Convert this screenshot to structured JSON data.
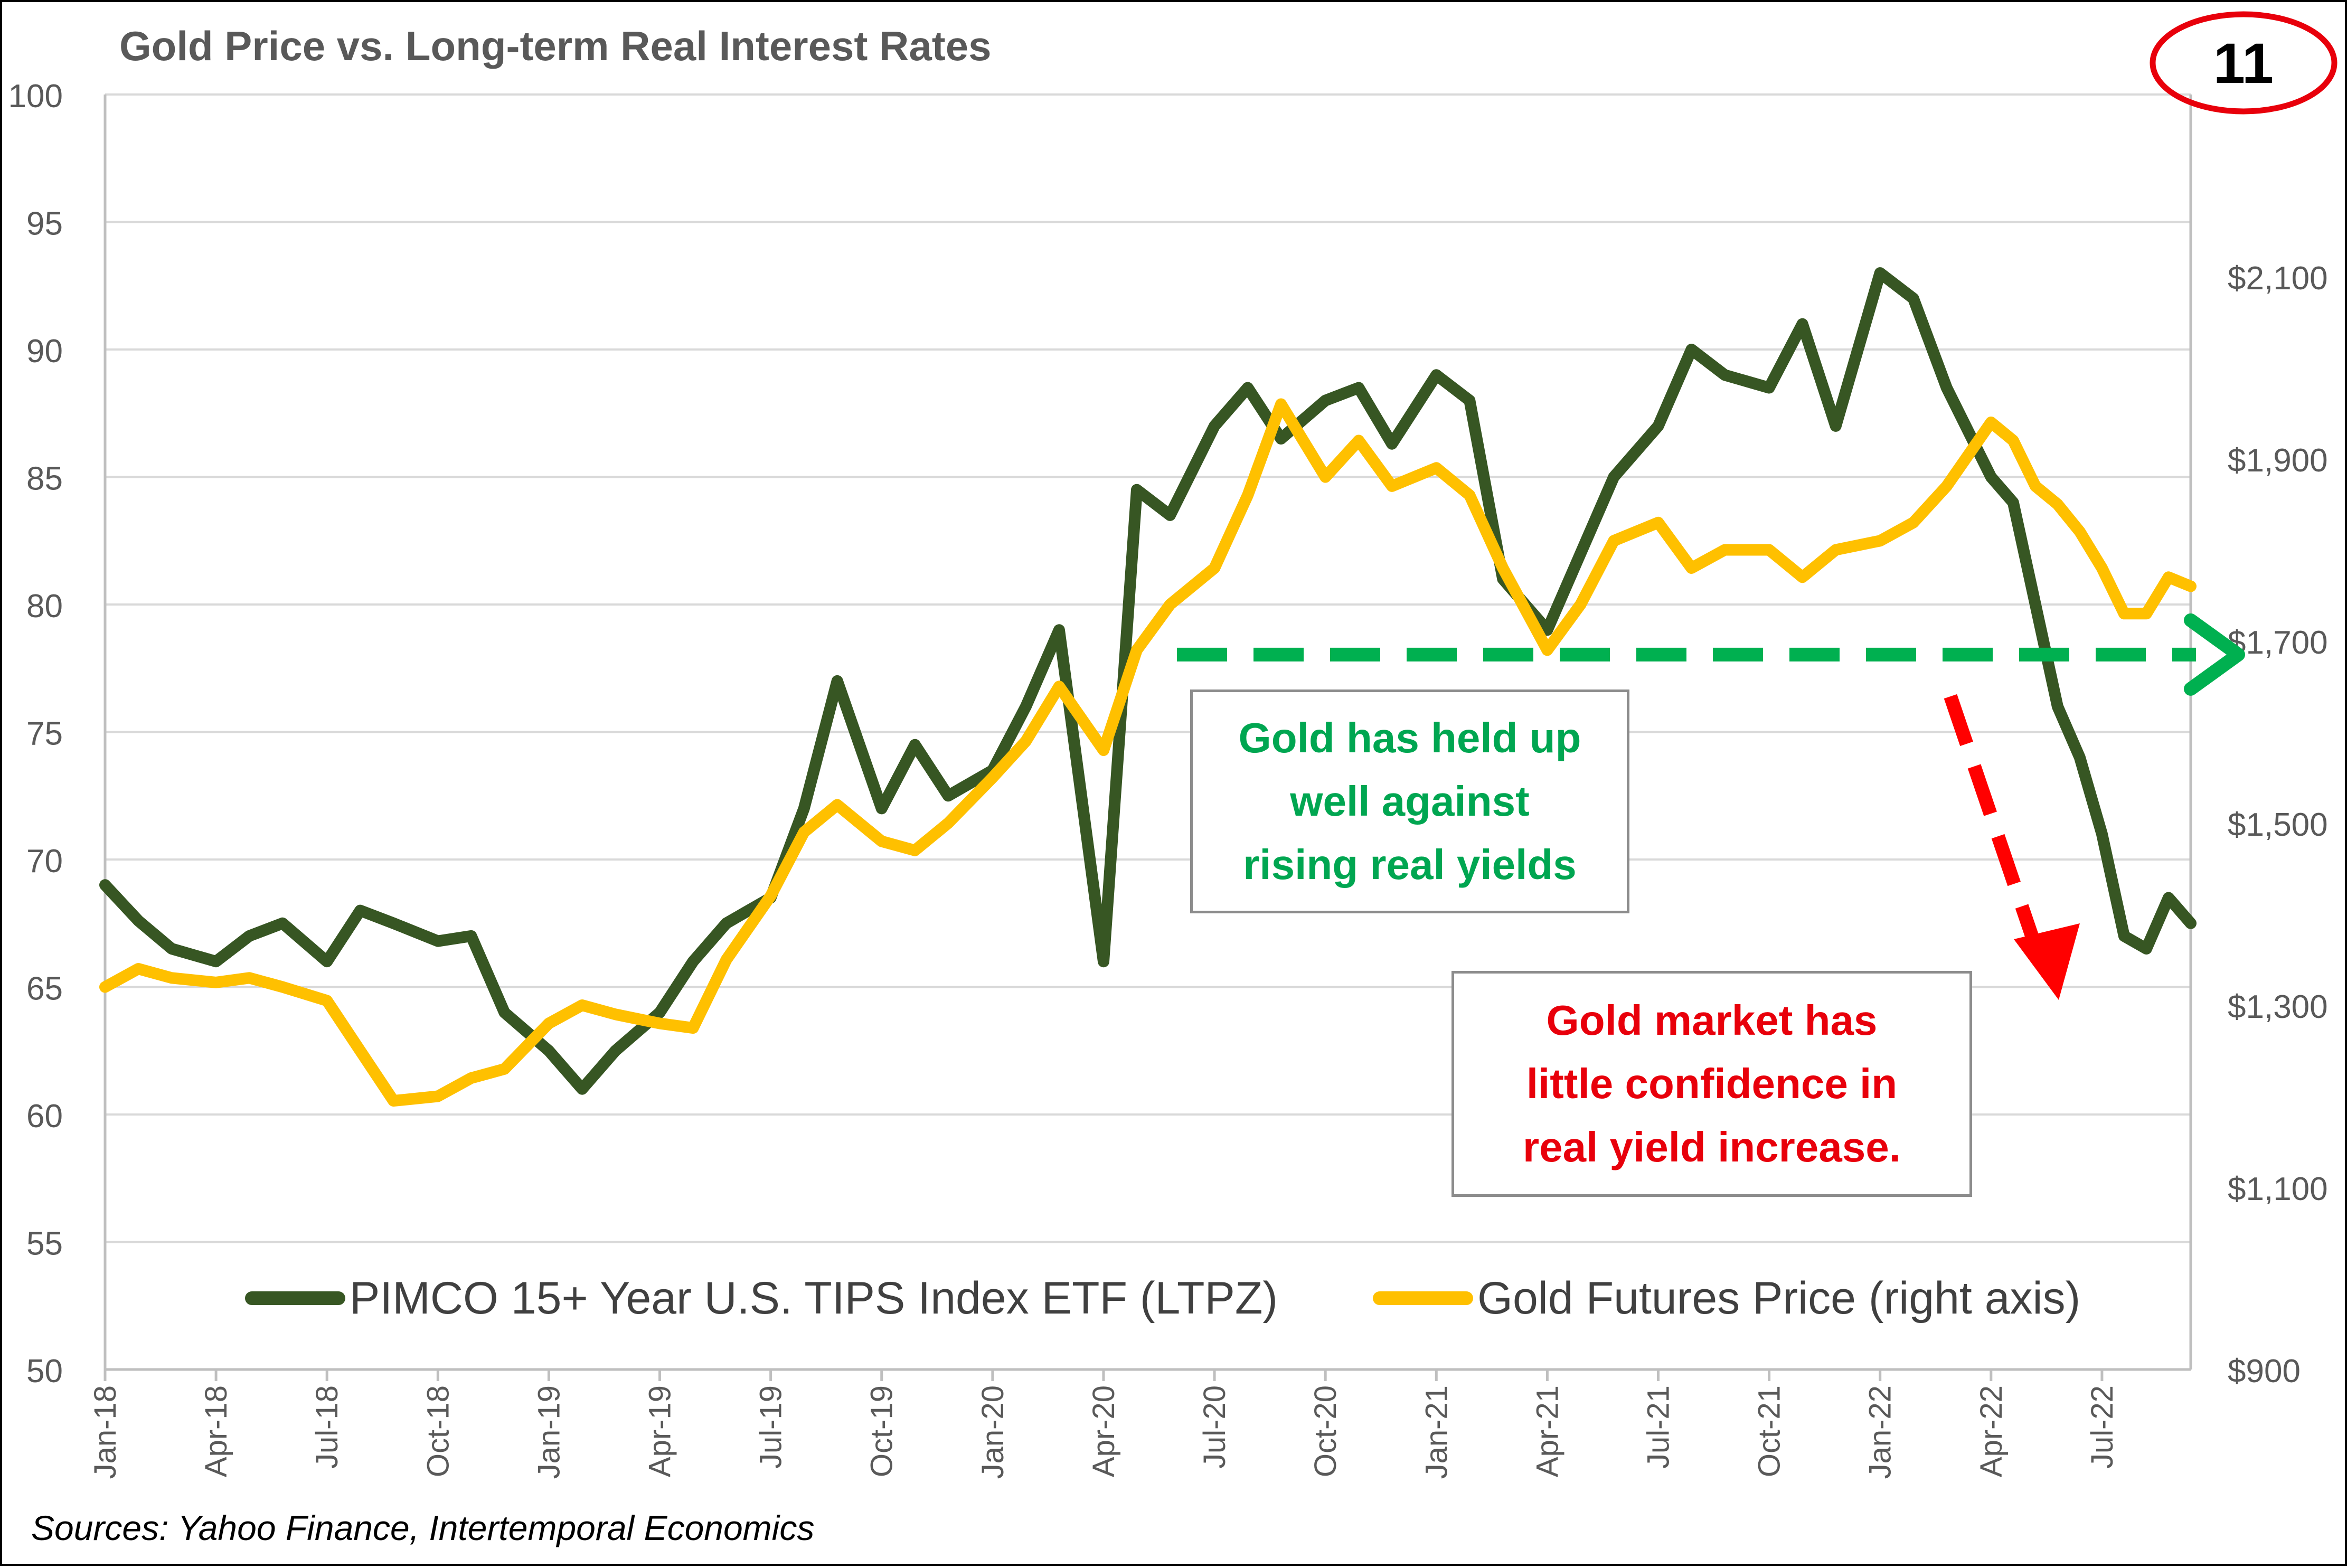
{
  "title": "Gold Price vs. Long-term Real Interest Rates",
  "slide_number": "11",
  "source": "Sources: Yahoo Finance, Intertemporal Economics",
  "annotations": {
    "green": "Gold has held up\nwell against\nrising real yields",
    "red": "Gold market has\nlittle confidence in\nreal yield increase."
  },
  "legend": {
    "ltpz": "PIMCO 15+ Year U.S. TIPS Index ETF (LTPZ)",
    "gold": "Gold Futures Price (right axis)"
  },
  "colors": {
    "ltpz": "#375623",
    "gold": "#ffc000",
    "green_arrow": "#00b050",
    "red_arrow": "#ff0000",
    "gridline": "#d9d9d9",
    "axis_text": "#595959",
    "circle": "#e8000b"
  },
  "chart_data": {
    "type": "line",
    "title": "Gold Price vs. Long-term Real Interest Rates",
    "x_tick_labels": [
      "Jan-18",
      "Apr-18",
      "Jul-18",
      "Oct-18",
      "Jan-19",
      "Apr-19",
      "Jul-19",
      "Oct-19",
      "Jan-20",
      "Apr-20",
      "Jul-20",
      "Oct-20",
      "Jan-21",
      "Apr-21",
      "Jul-21",
      "Oct-21",
      "Jan-22",
      "Apr-22",
      "Jul-22"
    ],
    "y_left": {
      "min": 50,
      "max": 100,
      "ticks": [
        50,
        55,
        60,
        65,
        70,
        75,
        80,
        85,
        90,
        95,
        100
      ],
      "tick_labels": [
        "50",
        "55",
        "60",
        "65",
        "70",
        "75",
        "80",
        "85",
        "90",
        "95",
        "100"
      ]
    },
    "y_right": {
      "min": 900,
      "max": 2300,
      "ticks": [
        900,
        1100,
        1300,
        1500,
        1700,
        1900,
        2100
      ],
      "tick_labels": [
        "$900",
        "$1,100",
        "$1,300",
        "$1,500",
        "$1,700",
        "$1,900",
        "$2,100"
      ]
    },
    "grid": true,
    "legend_position": "bottom",
    "series": [
      {
        "name": "PIMCO 15+ Year U.S. TIPS Index ETF (LTPZ)",
        "axis": "left",
        "x": [
          0,
          0.3,
          0.6,
          1,
          1.3,
          1.6,
          2,
          2.3,
          2.6,
          3,
          3.3,
          3.6,
          4,
          4.3,
          4.6,
          5,
          5.3,
          5.6,
          6,
          6.3,
          6.6,
          7,
          7.3,
          7.6,
          8,
          8.3,
          8.6,
          9,
          9.3,
          9.6,
          10,
          10.3,
          10.6,
          11,
          11.3,
          11.6,
          12,
          12.3,
          12.6,
          13,
          13.3,
          13.6,
          14,
          14.3,
          14.6,
          15,
          15.3,
          15.6,
          16,
          16.3,
          16.6,
          17,
          17.2,
          17.4,
          17.6,
          17.8,
          18,
          18.2,
          18.4,
          18.6,
          18.8
        ],
        "y": [
          69,
          67.6,
          66.5,
          66,
          67,
          67.5,
          66,
          68,
          67.5,
          66.8,
          67,
          64,
          62.5,
          61,
          62.5,
          64,
          66,
          67.5,
          68.5,
          72,
          77,
          72,
          74.5,
          72.5,
          73.5,
          76,
          79,
          66,
          84.5,
          83.5,
          87,
          88.5,
          86.5,
          88,
          88.5,
          86.3,
          89,
          88,
          81,
          79,
          82,
          85,
          87,
          90,
          89,
          88.5,
          91,
          87,
          93,
          92,
          88.5,
          85,
          84,
          80,
          76,
          74,
          71,
          67,
          66.5,
          68.5,
          67.5
        ]
      },
      {
        "name": "Gold Futures Price (right axis)",
        "axis": "right",
        "x": [
          0,
          0.3,
          0.6,
          1,
          1.3,
          1.6,
          2,
          2.3,
          2.6,
          3,
          3.3,
          3.6,
          4,
          4.3,
          4.6,
          5,
          5.3,
          5.6,
          6,
          6.3,
          6.6,
          7,
          7.3,
          7.6,
          8,
          8.3,
          8.6,
          9,
          9.3,
          9.6,
          10,
          10.3,
          10.6,
          11,
          11.3,
          11.6,
          12,
          12.3,
          12.6,
          13,
          13.3,
          13.6,
          14,
          14.3,
          14.6,
          15,
          15.3,
          15.6,
          16,
          16.3,
          16.6,
          17,
          17.2,
          17.4,
          17.6,
          17.8,
          18,
          18.2,
          18.4,
          18.6,
          18.8
        ],
        "y": [
          1320,
          1340,
          1330,
          1325,
          1330,
          1320,
          1305,
          1250,
          1195,
          1200,
          1220,
          1230,
          1280,
          1300,
          1290,
          1280,
          1275,
          1350,
          1420,
          1490,
          1520,
          1480,
          1470,
          1500,
          1550,
          1590,
          1650,
          1580,
          1690,
          1740,
          1780,
          1860,
          1960,
          1880,
          1920,
          1870,
          1890,
          1860,
          1780,
          1690,
          1740,
          1810,
          1830,
          1780,
          1800,
          1800,
          1770,
          1800,
          1810,
          1830,
          1870,
          1940,
          1920,
          1870,
          1850,
          1820,
          1780,
          1730,
          1730,
          1770,
          1760
        ]
      }
    ]
  }
}
